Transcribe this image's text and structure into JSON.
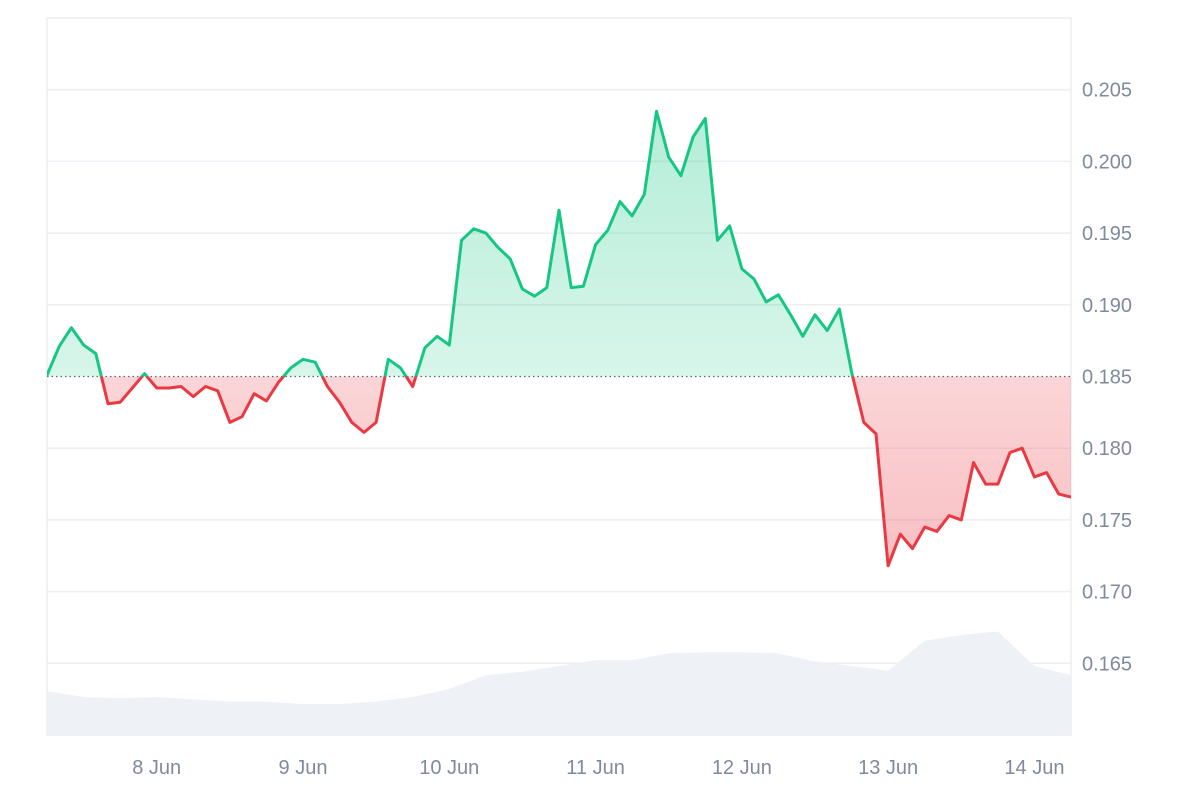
{
  "chart_data": {
    "type": "area",
    "title": "",
    "xlabel": "",
    "ylabel": "",
    "ylim": [
      0.16,
      0.21
    ],
    "baseline": 0.185,
    "grid": true,
    "legend": "none",
    "x_range": [
      "7 Jun 06:00",
      "14 Jun 06:00"
    ],
    "y_ticks": [
      "0.205",
      "0.200",
      "0.195",
      "0.190",
      "0.185",
      "0.180",
      "0.175",
      "0.170",
      "0.165"
    ],
    "x_ticks": [
      "8 Jun",
      "9 Jun",
      "10 Jun",
      "11 Jun",
      "12 Jun",
      "13 Jun",
      "14 Jun"
    ],
    "series": [
      {
        "values": [
          [
            "7 Jun 06:00",
            0.1851
          ],
          [
            "7 Jun 08:00",
            0.1871
          ],
          [
            "7 Jun 10:00",
            0.1884
          ],
          [
            "7 Jun 12:00",
            0.1872
          ],
          [
            "7 Jun 14:00",
            0.1866
          ],
          [
            "7 Jun 16:00",
            0.1831
          ],
          [
            "7 Jun 18:00",
            0.1832
          ],
          [
            "7 Jun 20:00",
            0.1842
          ],
          [
            "7 Jun 22:00",
            0.1852
          ],
          [
            "8 Jun 00:00",
            0.1842
          ],
          [
            "8 Jun 02:00",
            0.1842
          ],
          [
            "8 Jun 04:00",
            0.1843
          ],
          [
            "8 Jun 06:00",
            0.1836
          ],
          [
            "8 Jun 08:00",
            0.1843
          ],
          [
            "8 Jun 10:00",
            0.184
          ],
          [
            "8 Jun 12:00",
            0.1818
          ],
          [
            "8 Jun 14:00",
            0.1822
          ],
          [
            "8 Jun 16:00",
            0.1838
          ],
          [
            "8 Jun 18:00",
            0.1833
          ],
          [
            "8 Jun 20:00",
            0.1846
          ],
          [
            "8 Jun 22:00",
            0.1856
          ],
          [
            "9 Jun 00:00",
            0.1862
          ],
          [
            "9 Jun 02:00",
            0.186
          ],
          [
            "9 Jun 04:00",
            0.1843
          ],
          [
            "9 Jun 06:00",
            0.1832
          ],
          [
            "9 Jun 08:00",
            0.1818
          ],
          [
            "9 Jun 10:00",
            0.1811
          ],
          [
            "9 Jun 12:00",
            0.1818
          ],
          [
            "9 Jun 14:00",
            0.1862
          ],
          [
            "9 Jun 16:00",
            0.1856
          ],
          [
            "9 Jun 18:00",
            0.1843
          ],
          [
            "9 Jun 20:00",
            0.187
          ],
          [
            "9 Jun 22:00",
            0.1878
          ],
          [
            "10 Jun 00:00",
            0.1872
          ],
          [
            "10 Jun 02:00",
            0.1945
          ],
          [
            "10 Jun 04:00",
            0.1953
          ],
          [
            "10 Jun 06:00",
            0.195
          ],
          [
            "10 Jun 08:00",
            0.194
          ],
          [
            "10 Jun 10:00",
            0.1932
          ],
          [
            "10 Jun 12:00",
            0.1911
          ],
          [
            "10 Jun 14:00",
            0.1906
          ],
          [
            "10 Jun 16:00",
            0.1912
          ],
          [
            "10 Jun 18:00",
            0.1966
          ],
          [
            "10 Jun 20:00",
            0.1912
          ],
          [
            "10 Jun 22:00",
            0.1913
          ],
          [
            "11 Jun 00:00",
            0.1942
          ],
          [
            "11 Jun 02:00",
            0.1952
          ],
          [
            "11 Jun 04:00",
            0.1972
          ],
          [
            "11 Jun 06:00",
            0.1962
          ],
          [
            "11 Jun 08:00",
            0.1977
          ],
          [
            "11 Jun 10:00",
            0.2035
          ],
          [
            "11 Jun 12:00",
            0.2003
          ],
          [
            "11 Jun 14:00",
            0.199
          ],
          [
            "11 Jun 16:00",
            0.2017
          ],
          [
            "11 Jun 18:00",
            0.203
          ],
          [
            "11 Jun 20:00",
            0.1945
          ],
          [
            "11 Jun 22:00",
            0.1955
          ],
          [
            "12 Jun 00:00",
            0.1925
          ],
          [
            "12 Jun 02:00",
            0.1918
          ],
          [
            "12 Jun 04:00",
            0.1902
          ],
          [
            "12 Jun 06:00",
            0.1907
          ],
          [
            "12 Jun 08:00",
            0.1893
          ],
          [
            "12 Jun 10:00",
            0.1878
          ],
          [
            "12 Jun 12:00",
            0.1893
          ],
          [
            "12 Jun 14:00",
            0.1882
          ],
          [
            "12 Jun 16:00",
            0.1897
          ],
          [
            "12 Jun 18:00",
            0.1853
          ],
          [
            "12 Jun 20:00",
            0.1818
          ],
          [
            "12 Jun 22:00",
            0.181
          ],
          [
            "13 Jun 00:00",
            0.1718
          ],
          [
            "13 Jun 02:00",
            0.174
          ],
          [
            "13 Jun 04:00",
            0.173
          ],
          [
            "13 Jun 06:00",
            0.1745
          ],
          [
            "13 Jun 08:00",
            0.1742
          ],
          [
            "13 Jun 10:00",
            0.1753
          ],
          [
            "13 Jun 12:00",
            0.175
          ],
          [
            "13 Jun 14:00",
            0.179
          ],
          [
            "13 Jun 16:00",
            0.1775
          ],
          [
            "13 Jun 18:00",
            0.1775
          ],
          [
            "13 Jun 20:00",
            0.1797
          ],
          [
            "13 Jun 22:00",
            0.18
          ],
          [
            "14 Jun 00:00",
            0.178
          ],
          [
            "14 Jun 02:00",
            0.1783
          ],
          [
            "14 Jun 04:00",
            0.1768
          ],
          [
            "14 Jun 06:00",
            0.1766
          ]
        ]
      },
      {
        "type": "area",
        "scale": "relative",
        "values": [
          [
            "7 Jun 06:00",
            0.38
          ],
          [
            "7 Jun 12:00",
            0.33
          ],
          [
            "7 Jun 18:00",
            0.32
          ],
          [
            "8 Jun 00:00",
            0.33
          ],
          [
            "8 Jun 06:00",
            0.31
          ],
          [
            "8 Jun 12:00",
            0.29
          ],
          [
            "8 Jun 18:00",
            0.29
          ],
          [
            "9 Jun 00:00",
            0.27
          ],
          [
            "9 Jun 06:00",
            0.27
          ],
          [
            "9 Jun 12:00",
            0.29
          ],
          [
            "9 Jun 18:00",
            0.33
          ],
          [
            "10 Jun 00:00",
            0.4
          ],
          [
            "10 Jun 06:00",
            0.52
          ],
          [
            "10 Jun 12:00",
            0.55
          ],
          [
            "10 Jun 18:00",
            0.6
          ],
          [
            "11 Jun 00:00",
            0.65
          ],
          [
            "11 Jun 06:00",
            0.65
          ],
          [
            "11 Jun 12:00",
            0.71
          ],
          [
            "11 Jun 18:00",
            0.72
          ],
          [
            "12 Jun 00:00",
            0.72
          ],
          [
            "12 Jun 06:00",
            0.71
          ],
          [
            "12 Jun 12:00",
            0.64
          ],
          [
            "12 Jun 18:00",
            0.6
          ],
          [
            "13 Jun 00:00",
            0.56
          ],
          [
            "13 Jun 06:00",
            0.82
          ],
          [
            "13 Jun 12:00",
            0.87
          ],
          [
            "13 Jun 18:00",
            0.9
          ],
          [
            "14 Jun 00:00",
            0.6
          ],
          [
            "14 Jun 06:00",
            0.52
          ]
        ]
      }
    ],
    "colors": {
      "up": "#16c784",
      "down": "#ea3943",
      "up_fill": "#16c784",
      "down_fill": "#ea3943",
      "volume": "#eef1f5",
      "grid": "#eceef1",
      "baseline": "#58667e",
      "tick": "#808a9d"
    }
  }
}
